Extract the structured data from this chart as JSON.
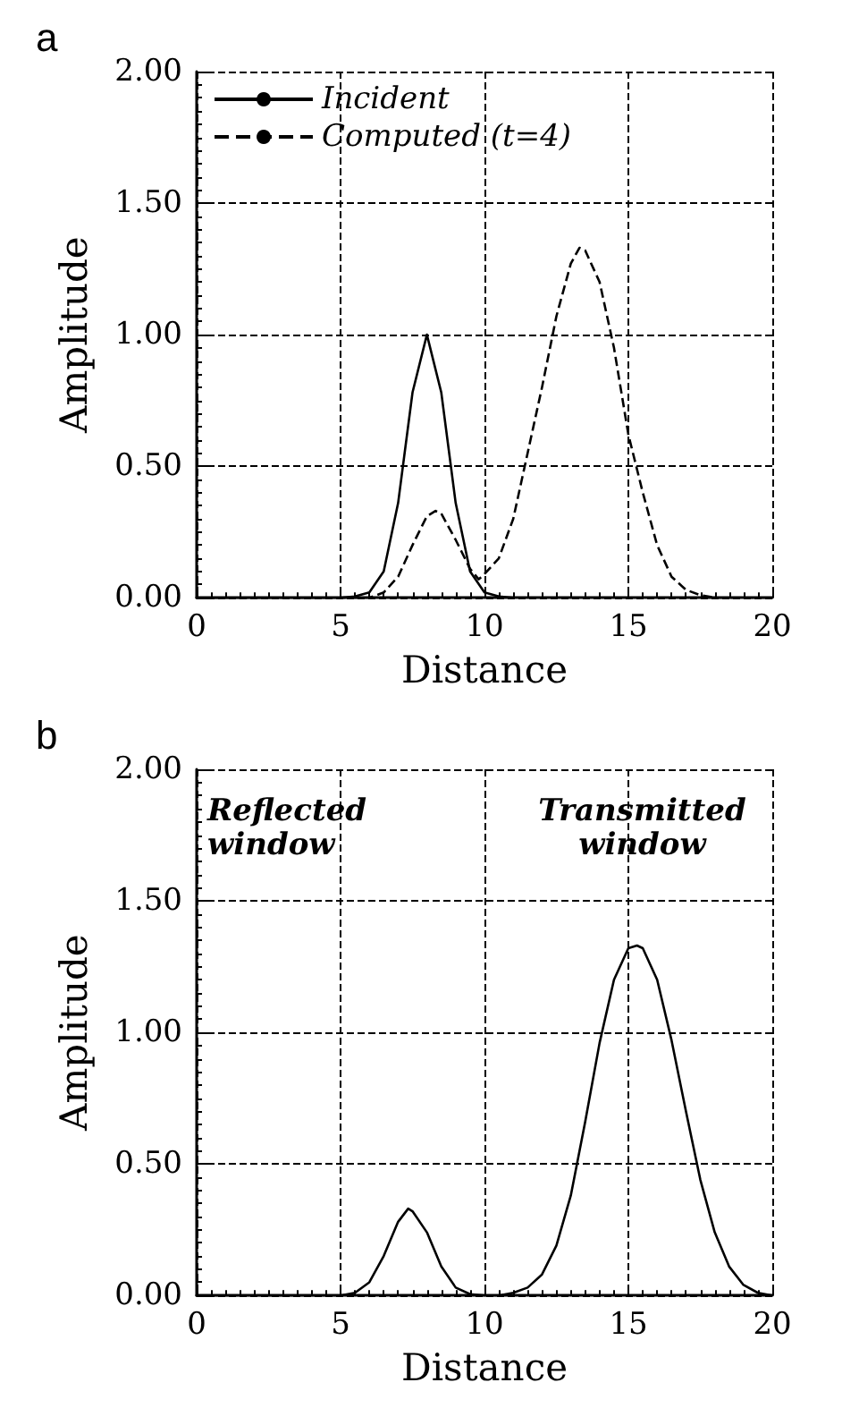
{
  "chart_data": [
    {
      "type": "line",
      "title": "a",
      "xlabel": "Distance",
      "ylabel": "Amplitude",
      "xlim": [
        0,
        20
      ],
      "xticks": [
        0,
        5,
        10,
        15,
        20
      ],
      "ylim": [
        0,
        2
      ],
      "yticks": [
        {
          "value": 0,
          "label": "0.00"
        },
        {
          "value": 0.5,
          "label": "0.50"
        },
        {
          "value": 1,
          "label": "1.00"
        },
        {
          "value": 1.5,
          "label": "1.50"
        },
        {
          "value": 2,
          "label": "2.00"
        }
      ],
      "grid": true,
      "legend": "top left",
      "marker": "none",
      "series": [
        {
          "name": "Incident",
          "color": "#000000",
          "line_style": "solid",
          "x": [
            0,
            5,
            5.5,
            6,
            6.5,
            7,
            7.5,
            8,
            8.5,
            9,
            9.5,
            10,
            10.5,
            11
          ],
          "values": [
            0,
            0,
            0.005,
            0.02,
            0.1,
            0.36,
            0.78,
            1.0,
            0.78,
            0.36,
            0.1,
            0.02,
            0.005,
            0
          ]
        },
        {
          "name": "Computed (t=4)",
          "color": "#000000",
          "line_style": "dashed",
          "x": [
            0,
            6,
            6.5,
            7,
            7.5,
            8,
            8.3,
            8.5,
            9,
            9.5,
            9.8,
            10,
            10.5,
            11,
            11.5,
            12,
            12.5,
            13,
            13.3,
            13.5,
            14,
            14.5,
            15,
            15.5,
            16,
            16.5,
            17,
            17.5,
            18,
            20
          ],
          "values": [
            0,
            0,
            0.02,
            0.08,
            0.2,
            0.31,
            0.33,
            0.32,
            0.22,
            0.11,
            0.07,
            0.09,
            0.15,
            0.3,
            0.55,
            0.8,
            1.07,
            1.27,
            1.33,
            1.32,
            1.2,
            0.95,
            0.62,
            0.4,
            0.2,
            0.08,
            0.03,
            0.01,
            0,
            0
          ]
        }
      ]
    },
    {
      "type": "line",
      "title": "b",
      "xlabel": "Distance",
      "ylabel": "Amplitude",
      "xlim": [
        0,
        20
      ],
      "xticks": [
        0,
        5,
        10,
        15,
        20
      ],
      "ylim": [
        0,
        2
      ],
      "yticks": [
        {
          "value": 0,
          "label": "0.00"
        },
        {
          "value": 0.5,
          "label": "0.50"
        },
        {
          "value": 1,
          "label": "1.00"
        },
        {
          "value": 1.5,
          "label": "1.50"
        },
        {
          "value": 2,
          "label": "2.00"
        }
      ],
      "grid": true,
      "marker": "none",
      "annotations": [
        "Reflected\nwindow",
        "Transmitted\nwindow"
      ],
      "series": [
        {
          "color": "#000000",
          "line_style": "solid",
          "x": [
            0,
            5,
            5.5,
            6,
            6.5,
            7,
            7.35,
            7.5,
            8,
            8.5,
            9,
            9.5,
            10,
            10.5,
            11,
            11.5,
            12,
            12.5,
            13,
            13.5,
            14,
            14.5,
            15,
            15.3,
            15.5,
            16,
            16.5,
            17,
            17.5,
            18,
            18.5,
            19,
            19.5,
            20
          ],
          "values": [
            0,
            0,
            0.01,
            0.05,
            0.15,
            0.28,
            0.33,
            0.32,
            0.24,
            0.11,
            0.03,
            0.005,
            0,
            0,
            0.01,
            0.03,
            0.08,
            0.19,
            0.38,
            0.66,
            0.96,
            1.2,
            1.32,
            1.33,
            1.32,
            1.2,
            0.97,
            0.7,
            0.44,
            0.24,
            0.11,
            0.04,
            0.01,
            0
          ]
        }
      ]
    }
  ]
}
